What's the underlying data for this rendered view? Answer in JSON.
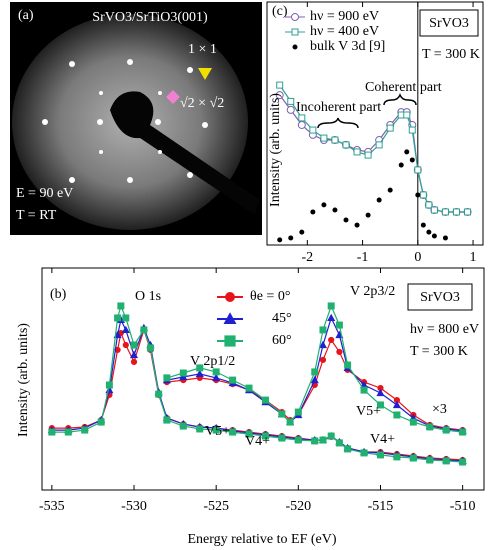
{
  "image": {
    "label": "(a)",
    "title": "SrVO3/SrTiO3(001)",
    "spot_1": "1 × 1",
    "spot_2": "√2 × √2",
    "energy": "E = 90 eV",
    "temperature": "T = RT"
  },
  "chart_data": [
    {
      "type": "line",
      "label": "(c)",
      "sample": "SrVO3",
      "temperature": "T = 300 K",
      "annotations": [
        "Coherent part",
        "Incoherent part"
      ],
      "y_label": "Intensity (arb. units)",
      "xlim": [
        -2.73,
        1.18
      ],
      "xticks": [
        -2,
        -1,
        0,
        1
      ],
      "ylim": [
        0,
        100
      ],
      "series": [
        {
          "name": "hν = 900 eV",
          "color": "#8060b0",
          "marker": "circle",
          "open": true,
          "x": [
            -2.5,
            -2.3,
            -2.1,
            -1.9,
            -1.7,
            -1.5,
            -1.3,
            -1.1,
            -0.9,
            -0.7,
            -0.5,
            -0.3,
            -0.2,
            -0.1,
            0,
            0.1,
            0.2,
            0.3,
            0.5,
            0.7,
            0.9
          ],
          "values": [
            61.7,
            55.6,
            49.4,
            45.3,
            43.2,
            43.2,
            41.2,
            39.1,
            38.3,
            43.2,
            49.4,
            54.7,
            54.7,
            49.4,
            30.9,
            20.6,
            16.5,
            14.4,
            13.6,
            13.6,
            13.6
          ]
        },
        {
          "name": "hν = 400 eV",
          "color": "#30a090",
          "marker": "square",
          "open": true,
          "x": [
            -2.5,
            -2.3,
            -2.1,
            -1.9,
            -1.7,
            -1.5,
            -1.3,
            -1.1,
            -0.9,
            -0.7,
            -0.5,
            -0.3,
            -0.2,
            -0.1,
            0,
            0.1,
            0.2,
            0.3,
            0.5,
            0.7,
            0.9
          ],
          "values": [
            65.8,
            59.1,
            52.3,
            47.3,
            44.0,
            43.2,
            41.2,
            38.3,
            37.0,
            41.2,
            48.1,
            53.5,
            53.5,
            47.3,
            30.9,
            20.6,
            16.5,
            14.4,
            13.6,
            13.6,
            13.6
          ]
        },
        {
          "name": "bulk V 3d [9]",
          "color": "#000000",
          "marker": "dot",
          "open": false,
          "x": [
            -2.5,
            -2.3,
            -2.1,
            -1.9,
            -1.7,
            -1.5,
            -1.3,
            -1.1,
            -0.9,
            -0.7,
            -0.5,
            -0.3,
            -0.2,
            -0.1,
            0,
            0.1,
            0.2,
            0.3,
            0.5
          ],
          "values": [
            2.1,
            2.9,
            5.3,
            13.6,
            16.5,
            14.4,
            10.3,
            8.2,
            12.3,
            18.5,
            22.6,
            32.9,
            38.3,
            35.0,
            20.6,
            8.2,
            5.3,
            3.7,
            2.9
          ]
        }
      ]
    },
    {
      "type": "line",
      "label": "(b)",
      "sample": "SrVO3",
      "photon_energy": "hν = 800 eV",
      "temperature": "T = 300 K",
      "annotations": [
        "O 1s",
        "V 2p3/2",
        "V 2p1/2",
        "V5+",
        "V4+",
        "V5+",
        "V4+"
      ],
      "x_label": "Energy relative to EF (eV)",
      "y_label": "Intensity (arb. units)",
      "xlim": [
        -535.6,
        -508.7
      ],
      "xticks": [
        -535,
        -530,
        -525,
        -520,
        -515,
        -510
      ],
      "ylim": [
        0,
        100
      ],
      "x": [
        -535,
        -534,
        -533,
        -532,
        -531.5,
        -531,
        -530.8,
        -530.5,
        -530,
        -529.4,
        -529,
        -528.5,
        -528,
        -527,
        -526,
        -525,
        -524,
        -523,
        -522,
        -521,
        -520,
        -519,
        -518.5,
        -518,
        -517.5,
        -517,
        -516,
        -515,
        -514,
        -513,
        -512,
        -511,
        -510
      ],
      "series": [
        {
          "name": "θe = 0°",
          "color": "#e8141b",
          "marker": "circle",
          "values": [
            27.9,
            27.9,
            28.4,
            31.5,
            42.8,
            63.1,
            70.7,
            65.3,
            57.7,
            72.1,
            63.1,
            42.8,
            32.4,
            29.7,
            28.4,
            27.9,
            27.0,
            26.1,
            25.2,
            24.3,
            23.4,
            22.5,
            22.5,
            23.9,
            21.6,
            18.9,
            17.1,
            17.1,
            16.2,
            15.3,
            14.4,
            14.0,
            13.5
          ]
        },
        {
          "name": "45°",
          "color": "#2020d0",
          "marker": "triangle",
          "values": [
            27.0,
            27.0,
            27.9,
            31.5,
            45.0,
            69.8,
            76.6,
            72.1,
            60.8,
            73.0,
            65.3,
            44.1,
            32.4,
            29.7,
            28.4,
            27.9,
            26.6,
            25.7,
            24.8,
            23.9,
            23.0,
            22.5,
            22.5,
            24.3,
            21.6,
            18.9,
            17.1,
            16.7,
            15.8,
            14.9,
            14.0,
            13.5,
            13.1
          ]
        },
        {
          "name": "60°",
          "color": "#20b070",
          "marker": "square",
          "values": [
            26.1,
            26.1,
            27.0,
            30.6,
            47.3,
            77.5,
            82.9,
            77.5,
            65.3,
            72.1,
            64.0,
            43.2,
            31.5,
            28.8,
            27.5,
            27.0,
            26.1,
            25.2,
            24.3,
            23.4,
            22.5,
            22.1,
            22.5,
            24.3,
            21.2,
            18.5,
            16.7,
            15.8,
            14.9,
            14.4,
            13.5,
            13.1,
            12.6
          ]
        }
      ],
      "magnified": {
        "label": "×3",
        "x": [
          -528,
          -527,
          -526,
          -525,
          -524,
          -523,
          -522,
          -521,
          -520.5,
          -520,
          -519,
          -518.5,
          -518,
          -517.5,
          -517,
          -516,
          -515,
          -514,
          -513,
          -512,
          -511,
          -510
        ],
        "series": [
          {
            "color": "#e8141b",
            "marker": "circle",
            "values": [
              48.6,
              49.5,
              50.5,
              49.5,
              47.7,
              45.0,
              40.5,
              35.1,
              31.5,
              33.8,
              47.3,
              58.6,
              67.6,
              62.2,
              54.1,
              48.6,
              45.9,
              40.5,
              33.8,
              29.3,
              27.9,
              27.0
            ]
          },
          {
            "color": "#2020d0",
            "marker": "triangle",
            "values": [
              49.5,
              50.9,
              52.3,
              50.5,
              48.2,
              45.0,
              39.6,
              34.2,
              30.6,
              33.8,
              49.5,
              65.3,
              77.5,
              69.8,
              55.0,
              47.3,
              43.7,
              38.3,
              32.4,
              28.8,
              27.5,
              26.6
            ]
          },
          {
            "color": "#20b070",
            "marker": "square",
            "values": [
              50.5,
              52.7,
              55.0,
              53.2,
              49.5,
              45.9,
              40.5,
              34.2,
              30.6,
              35.1,
              53.2,
              72.1,
              82.9,
              74.3,
              56.3,
              45.0,
              38.3,
              33.8,
              30.6,
              28.4,
              27.0,
              26.1
            ]
          }
        ]
      }
    }
  ]
}
